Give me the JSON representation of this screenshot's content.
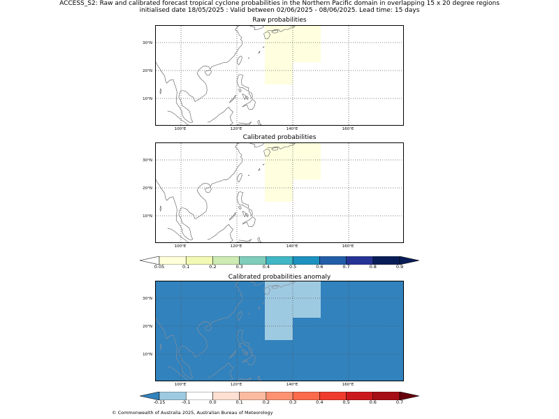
{
  "header": {
    "line1": "ACCESS_S2: Raw and calibrated forecast tropical cyclone probabilities in the Northern Pacific domain in overlapping 15 x 20 degree regions",
    "line2": "initialised date 18/05/2025 :  Valid between 02/06/2025 - 08/06/2025. Lead time: 15 days"
  },
  "map": {
    "lat_labels": [
      "30°N",
      "20°N",
      "10°N"
    ],
    "lon_labels": [
      "100°E",
      "120°E",
      "140°E",
      "160°E"
    ],
    "lon_range": [
      91,
      180
    ],
    "lat_range": [
      0,
      36
    ]
  },
  "panels": [
    {
      "title": "Raw probabilities",
      "background": "#ffffff",
      "regions": [
        {
          "lon": [
            130,
            140
          ],
          "lat": [
            15,
            36
          ],
          "color": "#ffffe0"
        },
        {
          "lon": [
            140,
            150
          ],
          "lat": [
            23,
            36
          ],
          "color": "#ffffe0"
        }
      ]
    },
    {
      "title": "Calibrated probabilities",
      "background": "#ffffff",
      "regions": [
        {
          "lon": [
            130,
            140
          ],
          "lat": [
            15,
            36
          ],
          "color": "#ffffe0"
        },
        {
          "lon": [
            140,
            150
          ],
          "lat": [
            23,
            36
          ],
          "color": "#ffffe0"
        }
      ]
    },
    {
      "title": "Calibrated probabilities anomaly",
      "background": "#3182bd",
      "regions": [
        {
          "lon": [
            130,
            140
          ],
          "lat": [
            15,
            36
          ],
          "color": "#9ecae1"
        },
        {
          "lon": [
            140,
            150
          ],
          "lat": [
            23,
            36
          ],
          "color": "#9ecae1"
        }
      ]
    }
  ],
  "colorbars": [
    {
      "ticks": [
        "0.05",
        "0.1",
        "0.2",
        "0.3",
        "0.4",
        "0.5",
        "0.6",
        "0.7",
        "0.8",
        "0.9"
      ],
      "under_color": "#ffffff",
      "over_color": "#081d58",
      "colors": [
        "#ffffd9",
        "#f1f9b4",
        "#cdebb3",
        "#7fcdbb",
        "#41b6c4",
        "#1d91c0",
        "#225ea8",
        "#253494",
        "#081d58"
      ]
    },
    {
      "ticks": [
        "-0.15",
        "-0.1",
        "0.0",
        "0.1",
        "0.2",
        "0.3",
        "0.4",
        "0.5",
        "0.6",
        "0.7"
      ],
      "under_color": "#3182bd",
      "over_color": "#67000d",
      "colors": [
        "#9ecae1",
        "#ffffff",
        "#fee0d2",
        "#fcbba1",
        "#fc9272",
        "#fb6a4a",
        "#ef3b2c",
        "#cb181d",
        "#a50f15"
      ]
    }
  ],
  "footer": "© Commonwealth of Australia 2025, Australian Bureau of Meteorology"
}
